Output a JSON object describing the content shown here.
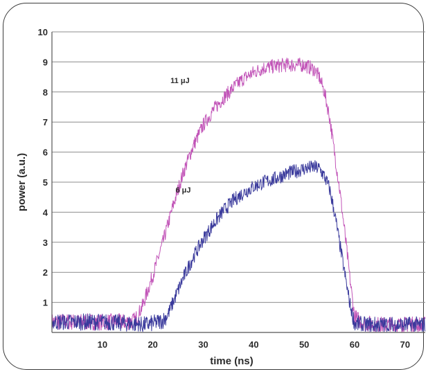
{
  "chart_data": {
    "type": "line",
    "xlabel": "time (ns)",
    "ylabel": "power (a.u.)",
    "xlim": [
      0,
      74
    ],
    "ylim": [
      0,
      10
    ],
    "xticks": [
      10,
      20,
      30,
      40,
      50,
      60,
      70
    ],
    "yticks": [
      1,
      2,
      3,
      4,
      5,
      6,
      7,
      8,
      9,
      10
    ],
    "grid": "horizontal",
    "annotations": [
      {
        "text": "11 μJ",
        "x": 23.5,
        "y": 8.3
      },
      {
        "text": "6 μJ",
        "x": 24.5,
        "y": 4.65
      }
    ],
    "series": [
      {
        "name": "11 μJ",
        "color": "#c255b8",
        "x": [
          0,
          5,
          10,
          15,
          16.5,
          18,
          20,
          22,
          24,
          26,
          28,
          30,
          32,
          34,
          36,
          38,
          40,
          42,
          44,
          46,
          48,
          50,
          52,
          53,
          54,
          55,
          56,
          57,
          58,
          59,
          60,
          62,
          65,
          70,
          74
        ],
        "y": [
          0.35,
          0.35,
          0.35,
          0.35,
          0.4,
          0.9,
          1.9,
          3.0,
          4.2,
          5.3,
          6.2,
          6.9,
          7.4,
          7.8,
          8.15,
          8.45,
          8.65,
          8.8,
          8.85,
          8.9,
          8.9,
          8.9,
          8.75,
          8.5,
          8.0,
          7.2,
          6.0,
          4.8,
          3.4,
          1.9,
          0.5,
          0.3,
          0.25,
          0.25,
          0.25
        ]
      },
      {
        "name": "6 μJ",
        "color": "#3a3a9c",
        "x": [
          0,
          5,
          10,
          15,
          18,
          20,
          22,
          23,
          24,
          26,
          28,
          30,
          32,
          34,
          36,
          38,
          40,
          42,
          44,
          46,
          48,
          50,
          52,
          53,
          54,
          55,
          56,
          57,
          58,
          59,
          60,
          62,
          65,
          70,
          74
        ],
        "y": [
          0.35,
          0.35,
          0.35,
          0.3,
          0.25,
          0.3,
          0.4,
          0.6,
          1.0,
          1.8,
          2.5,
          3.1,
          3.6,
          4.05,
          4.4,
          4.65,
          4.85,
          5.0,
          5.1,
          5.25,
          5.35,
          5.45,
          5.5,
          5.45,
          5.2,
          4.8,
          4.0,
          3.0,
          2.0,
          1.0,
          0.3,
          0.25,
          0.25,
          0.25,
          0.25
        ]
      }
    ]
  }
}
